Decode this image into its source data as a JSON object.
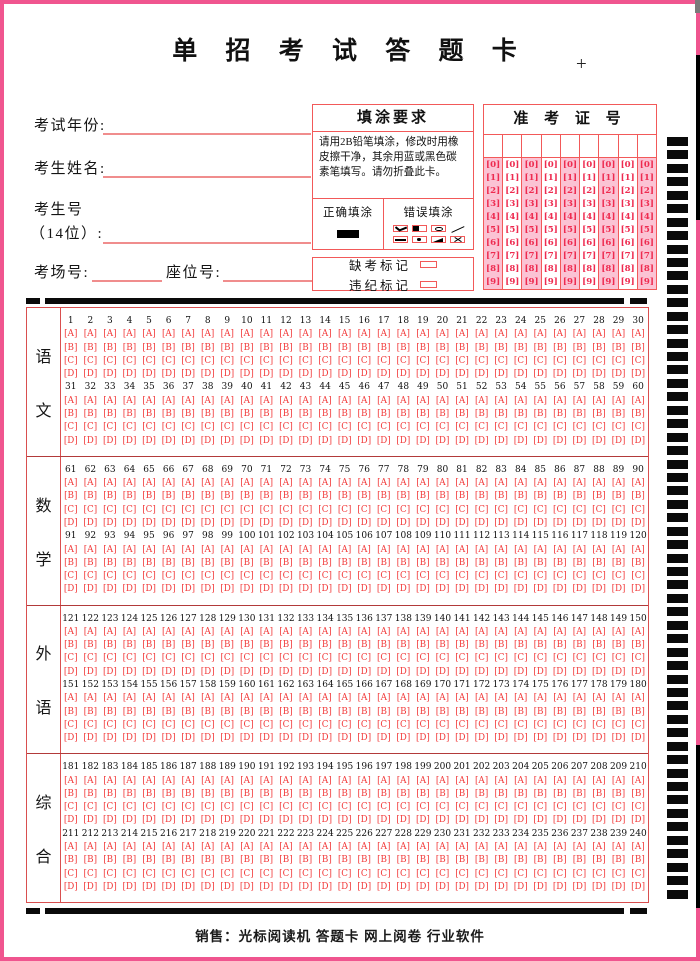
{
  "page": {
    "title": "单 招 考 试 答 题 卡",
    "registration_mark": "+",
    "footer": "销售：光标阅读机 答题卡 网上阅卷 行业软件"
  },
  "form": {
    "exam_year_label": "考试年份:",
    "name_label": "考生姓名:",
    "candidate_no_label": "考生号",
    "candidate_no_digits_label": "（14位）:",
    "room_no_label": "考场号:",
    "seat_no_label": "座位号:"
  },
  "fill_requirements": {
    "title": "填涂要求",
    "instructions": "请用2B铅笔填涂，修改时用橡皮擦干净，其余用蓝或黑色碳素笔填写。请勿折叠此卡。",
    "correct_fill_label": "正确填涂",
    "wrong_fill_label": "错误填涂",
    "wrong_fill_examples": [
      "check",
      "half-fill",
      "oval",
      "slash",
      "line",
      "dot",
      "triangle",
      "cross"
    ]
  },
  "marks_box": {
    "absent_label": "缺考标记",
    "violation_label": "违纪标记"
  },
  "admission_no": {
    "title": "准 考 证 号",
    "columns": 9,
    "digits": [
      "0",
      "1",
      "2",
      "3",
      "4",
      "5",
      "6",
      "7",
      "8",
      "9"
    ]
  },
  "answer_sheet": {
    "options": [
      "A",
      "B",
      "C",
      "D"
    ],
    "questions_per_row": 30,
    "total_questions": 240,
    "sections": [
      {
        "id": "chinese",
        "label": [
          "语",
          "文"
        ],
        "row_starts": [
          1,
          31
        ]
      },
      {
        "id": "math",
        "label": [
          "数",
          "学"
        ],
        "row_starts": [
          61,
          91
        ]
      },
      {
        "id": "foreign-language",
        "label": [
          "外",
          "语"
        ],
        "row_starts": [
          121,
          151
        ]
      },
      {
        "id": "comprehensive",
        "label": [
          "综",
          "合"
        ],
        "row_starts": [
          181,
          211
        ]
      }
    ]
  },
  "machine_marks": {
    "right_column_count": 57
  },
  "colors": {
    "border_pink": "#f0558f",
    "box_red": "#f25959",
    "grid_red": "#d94f4f",
    "bubble_red": "#f23b3b",
    "digit_red": "#ee2b50",
    "pink_fill": "#fbc3d4",
    "mark_black": "#0a0a0a"
  }
}
